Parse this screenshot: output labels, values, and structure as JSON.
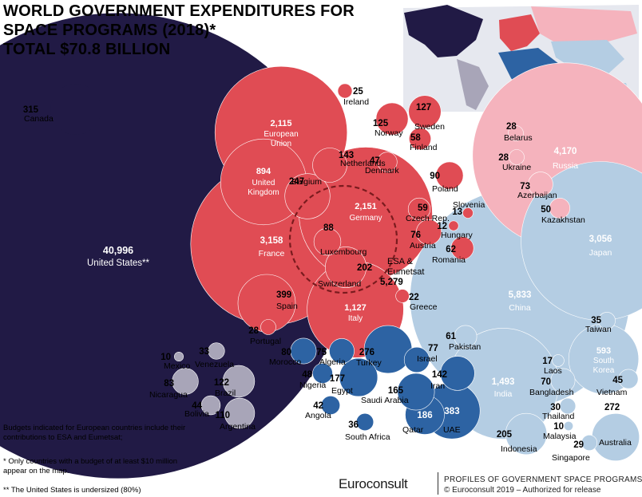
{
  "title": {
    "line1": "WORLD GOVERNMENT EXPENDITURES FOR",
    "line2": "SPACE PROGRAMS (2018)*",
    "line3": "TOTAL $70.8 BILLION"
  },
  "notes": {
    "budgets": "Budgets indicated for European countries include their contributions to ESA and Eumetsat;",
    "only": "* Only countries with a budget of at least  $10 million  appear on the map.",
    "us": "** The United States is undersized (80%)"
  },
  "branding": {
    "logo": "Euroconsult",
    "profile_title": "PROFILES OF GOVERNMENT SPACE PROGRAMS",
    "copyright": "© Euroconsult 2019 – Authorized for release"
  },
  "colors": {
    "americas": "#211a45",
    "europe": "#e04c54",
    "africa_mideast": "#2d63a3",
    "asia": "#b4cde3",
    "latin": "#a8a5b8",
    "russia_cis": "#f5b3bd"
  },
  "chart_data": {
    "type": "bubble",
    "title": "WORLD GOVERNMENT EXPENDITURES FOR SPACE PROGRAMS (2018)*",
    "subtitle": "TOTAL $70.8 BILLION",
    "unit": "USD million",
    "points": [
      {
        "name": "United States**",
        "value": 40996,
        "group": "americas"
      },
      {
        "name": "Canada",
        "value": 315,
        "group": "americas"
      },
      {
        "name": "European Union",
        "value": 2115,
        "group": "europe"
      },
      {
        "name": "Ireland",
        "value": 25,
        "group": "europe"
      },
      {
        "name": "Norway",
        "value": 125,
        "group": "europe"
      },
      {
        "name": "Sweden",
        "value": 127,
        "group": "europe"
      },
      {
        "name": "Finland",
        "value": 58,
        "group": "europe"
      },
      {
        "name": "Netherlands",
        "value": 143,
        "group": "europe"
      },
      {
        "name": "Denmark",
        "value": 47,
        "group": "europe"
      },
      {
        "name": "United Kingdom",
        "value": 894,
        "group": "europe"
      },
      {
        "name": "Belgium",
        "value": 247,
        "group": "europe"
      },
      {
        "name": "Poland",
        "value": 90,
        "group": "europe"
      },
      {
        "name": "Germany",
        "value": 2151,
        "group": "europe"
      },
      {
        "name": "France",
        "value": 3158,
        "group": "europe"
      },
      {
        "name": "Luxembourg",
        "value": 88,
        "group": "europe"
      },
      {
        "name": "Switzerland",
        "value": 202,
        "group": "europe"
      },
      {
        "name": "ESA & Eumetsat",
        "value": 5279,
        "group": "europe"
      },
      {
        "name": "Czech Rep.",
        "value": 59,
        "group": "europe"
      },
      {
        "name": "Slovenia",
        "value": 13,
        "group": "europe"
      },
      {
        "name": "Hungary",
        "value": 12,
        "group": "europe"
      },
      {
        "name": "Austria",
        "value": 76,
        "group": "europe"
      },
      {
        "name": "Romania",
        "value": 62,
        "group": "europe"
      },
      {
        "name": "Spain",
        "value": 399,
        "group": "europe"
      },
      {
        "name": "Italy",
        "value": 1127,
        "group": "europe"
      },
      {
        "name": "Portugal",
        "value": 28,
        "group": "europe"
      },
      {
        "name": "Greece",
        "value": 22,
        "group": "europe"
      },
      {
        "name": "Belarus",
        "value": 28,
        "group": "russia_cis"
      },
      {
        "name": "Ukraine",
        "value": 28,
        "group": "russia_cis"
      },
      {
        "name": "Azerbaijan",
        "value": 73,
        "group": "russia_cis"
      },
      {
        "name": "Kazakhstan",
        "value": 50,
        "group": "russia_cis"
      },
      {
        "name": "Russia",
        "value": 4170,
        "group": "russia_cis"
      },
      {
        "name": "Japan",
        "value": 3056,
        "group": "asia"
      },
      {
        "name": "China",
        "value": 5833,
        "group": "asia"
      },
      {
        "name": "Pakistan",
        "value": 61,
        "group": "asia"
      },
      {
        "name": "Taiwan",
        "value": 35,
        "group": "asia"
      },
      {
        "name": "South Korea",
        "value": 593,
        "group": "asia"
      },
      {
        "name": "Laos",
        "value": 17,
        "group": "asia"
      },
      {
        "name": "India",
        "value": 1493,
        "group": "asia"
      },
      {
        "name": "Bangladesh",
        "value": 70,
        "group": "asia"
      },
      {
        "name": "Vietnam",
        "value": 45,
        "group": "asia"
      },
      {
        "name": "Thailand",
        "value": 30,
        "group": "asia"
      },
      {
        "name": "Malaysia",
        "value": 10,
        "group": "asia"
      },
      {
        "name": "Indonesia",
        "value": 205,
        "group": "asia"
      },
      {
        "name": "Singapore",
        "value": 29,
        "group": "asia"
      },
      {
        "name": "Australia",
        "value": 272,
        "group": "asia"
      },
      {
        "name": "Mexico",
        "value": 10,
        "group": "latin"
      },
      {
        "name": "Venezuela",
        "value": 33,
        "group": "latin"
      },
      {
        "name": "Nicaragua",
        "value": 83,
        "group": "latin"
      },
      {
        "name": "Brazil",
        "value": 122,
        "group": "latin"
      },
      {
        "name": "Bolivia",
        "value": 44,
        "group": "latin"
      },
      {
        "name": "Argentina",
        "value": 110,
        "group": "latin"
      },
      {
        "name": "Morocco",
        "value": 80,
        "group": "africa_mideast"
      },
      {
        "name": "Algeria",
        "value": 75,
        "group": "africa_mideast"
      },
      {
        "name": "Turkey",
        "value": 276,
        "group": "africa_mideast"
      },
      {
        "name": "Israel",
        "value": 77,
        "group": "africa_mideast"
      },
      {
        "name": "Nigeria",
        "value": 48,
        "group": "africa_mideast"
      },
      {
        "name": "Egypt",
        "value": 177,
        "group": "africa_mideast"
      },
      {
        "name": "Saudi Arabia",
        "value": 165,
        "group": "africa_mideast"
      },
      {
        "name": "Iran",
        "value": 142,
        "group": "africa_mideast"
      },
      {
        "name": "Angola",
        "value": 42,
        "group": "africa_mideast"
      },
      {
        "name": "South Africa",
        "value": 36,
        "group": "africa_mideast"
      },
      {
        "name": "Qatar",
        "value": 186,
        "group": "africa_mideast"
      },
      {
        "name": "UAE",
        "value": 383,
        "group": "africa_mideast"
      }
    ]
  }
}
